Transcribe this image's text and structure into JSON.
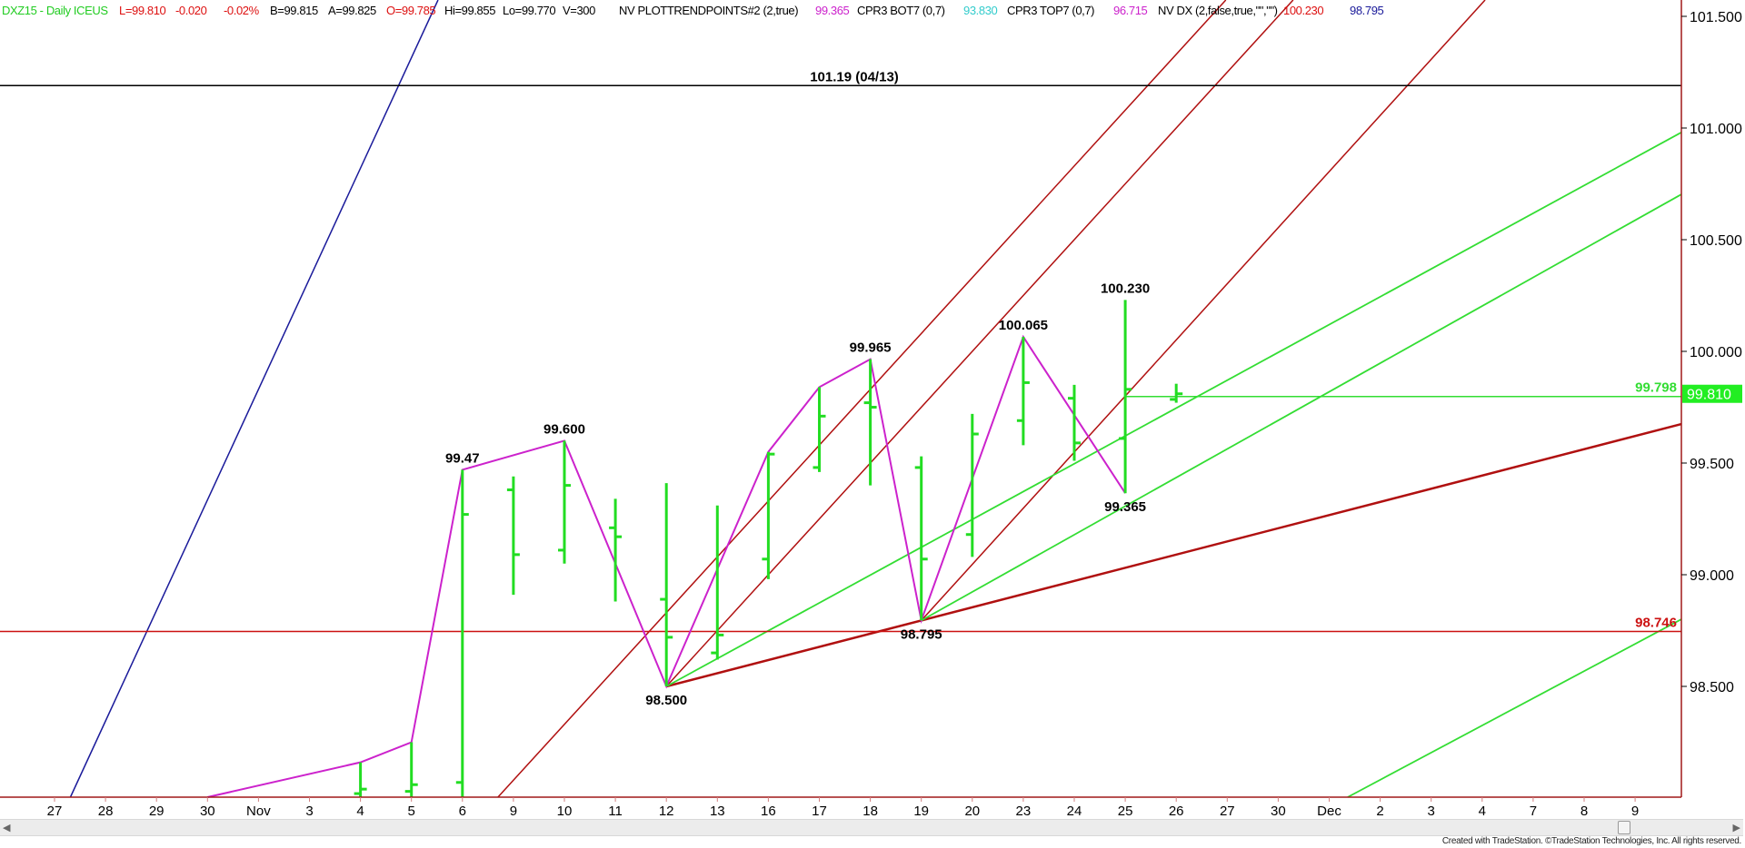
{
  "header": {
    "symbol": "DXZ15 - Daily  ICEUS",
    "last": "L=99.810",
    "net_change": "-0.020",
    "pct_change": "-0.02%",
    "bid": "B=99.815",
    "ask": "A=99.825",
    "open": "O=99.785",
    "high": "Hi=99.855",
    "low": "Lo=99.770",
    "volume": "V=300",
    "ind1_name": "NV  PLOTTRENDPOINTS#2 (2,true)",
    "ind1_value": "99.365",
    "ind2_name": "CPR3 BOT7 (0,7)",
    "ind2_value": "93.830",
    "ind3_name": "CPR3 TOP7 (0,7)",
    "ind3_value": "96.715",
    "ind4_name": "NV DX (2,false,true,\"\",\"\")",
    "ind4_value1": "100.230",
    "ind4_value2": "98.795"
  },
  "colors": {
    "bars": "#22dd22",
    "symbol": "#22cc22",
    "down": "#dd1111",
    "zigzag": "#cc22cc",
    "trend_red": "#b01010",
    "trend_green": "#33dd33",
    "trend_blue": "#1a1a9a",
    "cyan": "#33cccc",
    "axis": "#a01818",
    "price_box": "#22ee22"
  },
  "chart_data": {
    "type": "ohlc",
    "title": "",
    "xlabel": "",
    "ylabel": "",
    "ylim": [
      98.0,
      101.57
    ],
    "grid": false,
    "y_ticks": [
      "101.500",
      "101.000",
      "100.500",
      "100.000",
      "99.500",
      "99.000",
      "98.500"
    ],
    "x_dates": [
      "2015-10-27",
      "2015-10-28",
      "2015-10-29",
      "2015-10-30",
      "2015-11-02",
      "2015-11-03",
      "2015-11-04",
      "2015-11-05",
      "2015-11-06",
      "2015-11-09",
      "2015-11-10",
      "2015-11-11",
      "2015-11-12",
      "2015-11-13",
      "2015-11-16",
      "2015-11-17",
      "2015-11-18",
      "2015-11-19",
      "2015-11-20",
      "2015-11-23",
      "2015-11-24",
      "2015-11-25",
      "2015-11-26",
      "2015-11-27",
      "2015-11-30",
      "2015-12-01",
      "2015-12-02",
      "2015-12-03",
      "2015-12-04",
      "2015-12-07",
      "2015-12-08",
      "2015-12-09"
    ],
    "x_tick_labels": [
      "27",
      "28",
      "29",
      "30",
      "Nov",
      "3",
      "4",
      "5",
      "6",
      "9",
      "10",
      "11",
      "12",
      "13",
      "16",
      "17",
      "18",
      "19",
      "20",
      "23",
      "24",
      "25",
      "26",
      "27",
      "30",
      "Dec",
      "2",
      "3",
      "4",
      "7",
      "8",
      "9"
    ],
    "bars": [
      {
        "date": "2015-11-04",
        "open": 98.02,
        "high": 98.16,
        "low": 97.98,
        "close": 98.04
      },
      {
        "date": "2015-11-05",
        "open": 98.03,
        "high": 98.25,
        "low": 97.98,
        "close": 98.06
      },
      {
        "date": "2015-11-06",
        "open": 98.07,
        "high": 99.47,
        "low": 97.98,
        "close": 99.27
      },
      {
        "date": "2015-11-09",
        "open": 99.38,
        "high": 99.44,
        "low": 98.91,
        "close": 99.09
      },
      {
        "date": "2015-11-10",
        "open": 99.11,
        "high": 99.6,
        "low": 99.05,
        "close": 99.4
      },
      {
        "date": "2015-11-11",
        "open": 99.21,
        "high": 99.34,
        "low": 98.88,
        "close": 99.17
      },
      {
        "date": "2015-11-12",
        "open": 98.89,
        "high": 99.41,
        "low": 98.5,
        "close": 98.72
      },
      {
        "date": "2015-11-13",
        "open": 98.65,
        "high": 99.31,
        "low": 98.62,
        "close": 98.73
      },
      {
        "date": "2015-11-16",
        "open": 99.07,
        "high": 99.55,
        "low": 98.98,
        "close": 99.54
      },
      {
        "date": "2015-11-17",
        "open": 99.48,
        "high": 99.84,
        "low": 99.46,
        "close": 99.71
      },
      {
        "date": "2015-11-18",
        "open": 99.77,
        "high": 99.965,
        "low": 99.4,
        "close": 99.75
      },
      {
        "date": "2015-11-19",
        "open": 99.48,
        "high": 99.53,
        "low": 98.795,
        "close": 99.07
      },
      {
        "date": "2015-11-20",
        "open": 99.18,
        "high": 99.72,
        "low": 99.08,
        "close": 99.63
      },
      {
        "date": "2015-11-23",
        "open": 99.69,
        "high": 100.065,
        "low": 99.58,
        "close": 99.86
      },
      {
        "date": "2015-11-24",
        "open": 99.79,
        "high": 99.85,
        "low": 99.51,
        "close": 99.59
      },
      {
        "date": "2015-11-25",
        "open": 99.61,
        "high": 100.23,
        "low": 99.365,
        "close": 99.83
      },
      {
        "date": "2015-11-26",
        "open": 99.785,
        "high": 99.855,
        "low": 99.77,
        "close": 99.81
      }
    ],
    "zigzag": [
      {
        "date": "2015-10-30",
        "price": 98.0
      },
      {
        "date": "2015-11-04",
        "price": 98.16
      },
      {
        "date": "2015-11-05",
        "price": 98.25
      },
      {
        "date": "2015-11-06",
        "price": 99.47
      },
      {
        "date": "2015-11-10",
        "price": 99.6
      },
      {
        "date": "2015-11-12",
        "price": 98.5
      },
      {
        "date": "2015-11-16",
        "price": 99.55
      },
      {
        "date": "2015-11-17",
        "price": 99.84
      },
      {
        "date": "2015-11-18",
        "price": 99.965
      },
      {
        "date": "2015-11-19",
        "price": 98.795
      },
      {
        "date": "2015-11-23",
        "price": 100.065
      },
      {
        "date": "2015-11-25",
        "price": 99.365
      }
    ],
    "pivot_labels": [
      {
        "date": "2015-11-06",
        "price": 99.47,
        "text": "99.47",
        "pos": "above"
      },
      {
        "date": "2015-11-10",
        "price": 99.6,
        "text": "99.600",
        "pos": "above"
      },
      {
        "date": "2015-11-12",
        "price": 98.5,
        "text": "98.500",
        "pos": "below"
      },
      {
        "date": "2015-11-18",
        "price": 99.965,
        "text": "99.965",
        "pos": "above"
      },
      {
        "date": "2015-11-19",
        "price": 98.795,
        "text": "98.795",
        "pos": "below"
      },
      {
        "date": "2015-11-23",
        "price": 100.065,
        "text": "100.065",
        "pos": "above"
      },
      {
        "date": "2015-11-25",
        "price": 100.23,
        "text": "100.230",
        "pos": "above"
      },
      {
        "date": "2015-11-25",
        "price": 99.365,
        "text": "99.365",
        "pos": "below"
      }
    ],
    "trendlines": [
      {
        "color": "trend_blue",
        "width": 1.5,
        "p1": [
          "2015-10-27",
          97.85
        ],
        "p2": [
          "2015-11-04",
          100.82
        ],
        "extend_left": true
      },
      {
        "color": "trend_red",
        "width": 1.5,
        "p1": [
          "2015-11-12",
          98.83
        ],
        "p2": [
          "2015-11-18",
          99.83
        ],
        "extend_left": true
      },
      {
        "color": "trend_red",
        "width": 1.5,
        "p1": [
          "2015-11-12",
          98.5
        ],
        "p2": [
          "2015-11-18",
          99.5
        ],
        "extend_left": false
      },
      {
        "color": "trend_red",
        "width": 1.5,
        "p1": [
          "2015-11-19",
          98.795
        ],
        "p2": [
          "2015-11-25",
          99.8
        ],
        "extend_left": false
      },
      {
        "color": "trend_red",
        "width": 2.5,
        "p1": [
          "2015-11-12",
          98.5
        ],
        "p2": [
          "2015-11-19",
          98.795
        ],
        "extend_left": false
      },
      {
        "color": "trend_green",
        "width": 1.8,
        "p1": [
          "2015-11-12",
          98.5
        ],
        "p2": [
          "2015-11-19",
          99.123
        ],
        "extend_left": false
      },
      {
        "color": "trend_green",
        "width": 1.8,
        "p1": [
          "2015-11-19",
          98.795
        ],
        "p2": [
          "2015-11-25",
          99.307
        ],
        "extend_left": false
      },
      {
        "color": "trend_green",
        "width": 1.8,
        "p1": [
          "2015-12-01",
          97.96
        ],
        "p2": [
          "2015-12-09",
          98.69
        ],
        "extend_left": true
      }
    ],
    "horizontal_lines": [
      {
        "price": 101.19,
        "color": "#000000",
        "label": "101.19 (04/13)",
        "from": "2015-10-27"
      },
      {
        "price": 98.746,
        "color": "#cc1111",
        "label": "98.746",
        "from": "2015-10-27"
      },
      {
        "price": 99.798,
        "color": "#33dd33",
        "label": "99.798",
        "from": "2015-11-25"
      }
    ],
    "last_price": "99.810"
  },
  "footer": "Created with TradeStation. ©TradeStation Technologies, Inc. All rights reserved."
}
